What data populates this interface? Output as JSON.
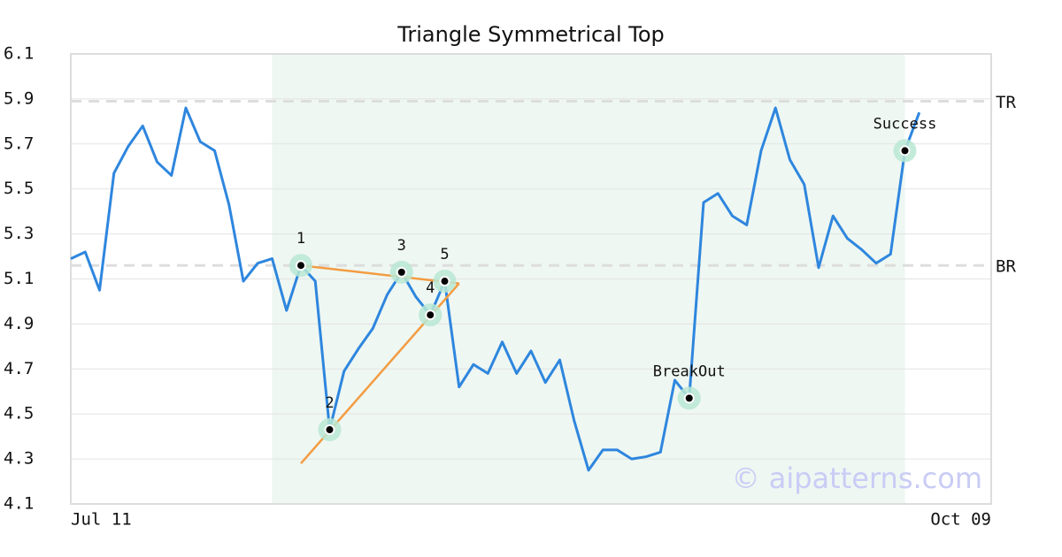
{
  "chart_data": {
    "type": "line",
    "title": "Triangle Symmetrical Top",
    "categories": [
      "Jul 11",
      null,
      null,
      null,
      null,
      null,
      null,
      null,
      null,
      null,
      null,
      null,
      null,
      null,
      null,
      null,
      null,
      null,
      null,
      null,
      null,
      null,
      null,
      null,
      null,
      null,
      null,
      null,
      null,
      null,
      null,
      null,
      null,
      null,
      null,
      null,
      null,
      null,
      null,
      null,
      null,
      null,
      null,
      null,
      null,
      null,
      null,
      null,
      null,
      null,
      null,
      null,
      null,
      null,
      null,
      null,
      null,
      null,
      null,
      "Oct 09"
    ],
    "values": [
      5.19,
      5.22,
      5.05,
      5.57,
      5.69,
      5.78,
      5.62,
      5.56,
      5.86,
      5.71,
      5.67,
      5.43,
      5.09,
      5.17,
      5.19,
      4.96,
      5.16,
      5.09,
      4.43,
      4.69,
      4.79,
      4.88,
      5.03,
      5.13,
      5.02,
      4.94,
      5.09,
      4.62,
      4.72,
      4.68,
      4.82,
      4.68,
      4.78,
      4.64,
      4.74,
      4.47,
      4.25,
      4.34,
      4.34,
      4.3,
      4.31,
      4.33,
      4.65,
      4.57,
      5.44,
      5.48,
      5.38,
      5.34,
      5.67,
      5.86,
      5.63,
      5.52,
      5.15,
      5.38,
      5.28,
      5.23,
      5.17,
      5.21,
      5.67,
      5.84
    ],
    "color": "#2e86de",
    "ylim": [
      4.1,
      6.1
    ],
    "yticks": [
      4.1,
      4.3,
      4.5,
      4.7,
      4.9,
      5.1,
      5.3,
      5.5,
      5.7,
      5.9,
      6.1
    ],
    "grid": true,
    "highlight_range": [
      14,
      58
    ],
    "highlight_color": "#eef7f2",
    "levels": [
      {
        "label": "TR",
        "value": 5.89
      },
      {
        "label": "BR",
        "value": 5.16
      }
    ],
    "points": [
      {
        "label": "1",
        "x": 16,
        "value": 5.16
      },
      {
        "label": "2",
        "x": 18,
        "value": 4.43
      },
      {
        "label": "3",
        "x": 23,
        "value": 5.13
      },
      {
        "label": "4",
        "x": 25,
        "value": 4.94
      },
      {
        "label": "5",
        "x": 26,
        "value": 5.09
      },
      {
        "label": "BreakOut",
        "x": 43,
        "value": 4.57
      },
      {
        "label": "Success",
        "x": 58,
        "value": 5.67
      }
    ],
    "trend_color": "#f39c42",
    "trend_lines": [
      {
        "x": [
          16,
          27
        ],
        "values": [
          5.16,
          5.08
        ]
      },
      {
        "x": [
          16,
          27
        ],
        "values": [
          4.28,
          5.08
        ]
      }
    ],
    "watermark": "© aipatterns.com"
  }
}
